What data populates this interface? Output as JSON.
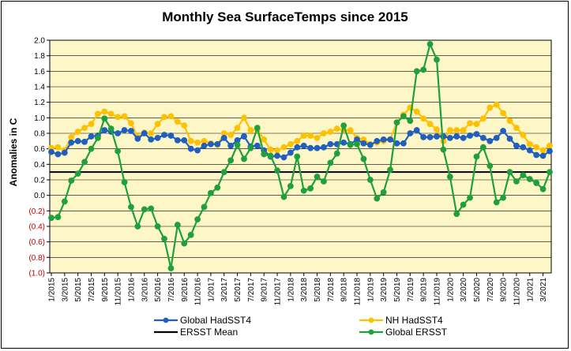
{
  "chart_data": {
    "type": "line",
    "title": "Monthly Sea SurfaceTemps since 2015",
    "xlabel": "",
    "ylabel": "Anomalies in C",
    "ylim": [
      -1.0,
      2.0
    ],
    "y_ticks": [
      -1.0,
      -0.8,
      -0.6,
      -0.4,
      -0.2,
      0.0,
      0.2,
      0.4,
      0.6,
      0.8,
      1.0,
      1.2,
      1.4,
      1.6,
      1.8,
      2.0
    ],
    "y_tick_labels": [
      "(1.0)",
      "(0.8)",
      "(0.6)",
      "(0.4)",
      "(0.2)",
      "0.0",
      "0.2",
      "0.4",
      "0.6",
      "0.8",
      "1.0",
      "1.2",
      "1.4",
      "1.6",
      "1.8",
      "2.0"
    ],
    "x_tick_labels": [
      "1/2015",
      "3/2015",
      "5/2015",
      "7/2015",
      "9/2015",
      "11/2015",
      "1/2016",
      "3/2016",
      "5/2016",
      "7/2016",
      "9/2016",
      "11/2016",
      "1/2017",
      "3/2017",
      "5/2017",
      "7/2017",
      "9/2017",
      "11/2017",
      "1/2018",
      "3/2018",
      "5/2018",
      "7/2018",
      "9/2018",
      "11/2018",
      "1/2019",
      "3/2019",
      "5/2019",
      "7/2019",
      "9/2019",
      "11/2019",
      "1/2020",
      "3/2020",
      "5/2020",
      "7/2020",
      "9/2020",
      "11/2020",
      "1/2021",
      "3/2021"
    ],
    "grid": true,
    "series": [
      {
        "name": "Global HadSST4",
        "color": "#1f5fbf",
        "marker": true,
        "values": [
          0.56,
          0.53,
          0.55,
          0.68,
          0.7,
          0.69,
          0.76,
          0.77,
          0.84,
          0.82,
          0.8,
          0.84,
          0.83,
          0.73,
          0.8,
          0.72,
          0.74,
          0.78,
          0.77,
          0.71,
          0.71,
          0.6,
          0.58,
          0.64,
          0.66,
          0.66,
          0.74,
          0.64,
          0.71,
          0.76,
          0.63,
          0.64,
          0.58,
          0.5,
          0.51,
          0.49,
          0.55,
          0.62,
          0.64,
          0.61,
          0.61,
          0.62,
          0.66,
          0.66,
          0.68,
          0.66,
          0.72,
          0.67,
          0.65,
          0.7,
          0.72,
          0.72,
          0.67,
          0.67,
          0.8,
          0.84,
          0.75,
          0.75,
          0.76,
          0.76,
          0.74,
          0.76,
          0.74,
          0.77,
          0.79,
          0.74,
          0.7,
          0.74,
          0.83,
          0.73,
          0.64,
          0.62,
          0.58,
          0.52,
          0.51,
          0.57
        ]
      },
      {
        "name": "NH HadSST4",
        "color": "#ffc000",
        "marker": true,
        "values": [
          0.61,
          0.62,
          0.58,
          0.75,
          0.82,
          0.87,
          0.92,
          1.05,
          1.08,
          1.05,
          1.01,
          1.02,
          0.93,
          0.75,
          0.81,
          0.8,
          0.92,
          1.01,
          1.02,
          0.95,
          0.9,
          0.7,
          0.68,
          0.7,
          0.67,
          0.65,
          0.8,
          0.78,
          0.87,
          1.0,
          0.84,
          0.85,
          0.72,
          0.59,
          0.58,
          0.62,
          0.66,
          0.7,
          0.77,
          0.77,
          0.74,
          0.8,
          0.82,
          0.86,
          0.84,
          0.84,
          0.74,
          0.72,
          0.66,
          0.68,
          0.7,
          0.72,
          0.94,
          1.04,
          1.13,
          1.08,
          0.99,
          0.92,
          0.85,
          0.7,
          0.84,
          0.84,
          0.84,
          0.93,
          0.92,
          0.99,
          1.13,
          1.17,
          1.06,
          0.96,
          0.87,
          0.78,
          0.66,
          0.62,
          0.58,
          0.64
        ]
      },
      {
        "name": "ERSST Mean",
        "color": "#000000",
        "marker": false,
        "constant": 0.3
      },
      {
        "name": "Global ERSST",
        "color": "#1fa03c",
        "marker": true,
        "values": [
          -0.29,
          -0.28,
          -0.08,
          0.19,
          0.28,
          0.43,
          0.6,
          0.74,
          0.99,
          0.86,
          0.57,
          0.17,
          -0.15,
          -0.4,
          -0.18,
          -0.17,
          -0.4,
          -0.56,
          -0.94,
          -0.38,
          -0.62,
          -0.51,
          -0.31,
          -0.15,
          0.03,
          0.1,
          0.3,
          0.45,
          0.65,
          0.47,
          0.61,
          0.87,
          0.53,
          0.51,
          0.32,
          -0.02,
          0.12,
          0.5,
          0.06,
          0.09,
          0.24,
          0.18,
          0.42,
          0.54,
          0.9,
          0.65,
          0.66,
          0.47,
          0.2,
          -0.04,
          0.04,
          0.33,
          0.94,
          1.02,
          0.96,
          1.6,
          1.62,
          1.95,
          1.75,
          0.59,
          0.24,
          -0.24,
          -0.12,
          -0.03,
          0.5,
          0.62,
          0.38,
          -0.09,
          -0.03,
          0.3,
          0.18,
          0.26,
          0.21,
          0.16,
          0.08,
          0.3
        ]
      }
    ]
  }
}
